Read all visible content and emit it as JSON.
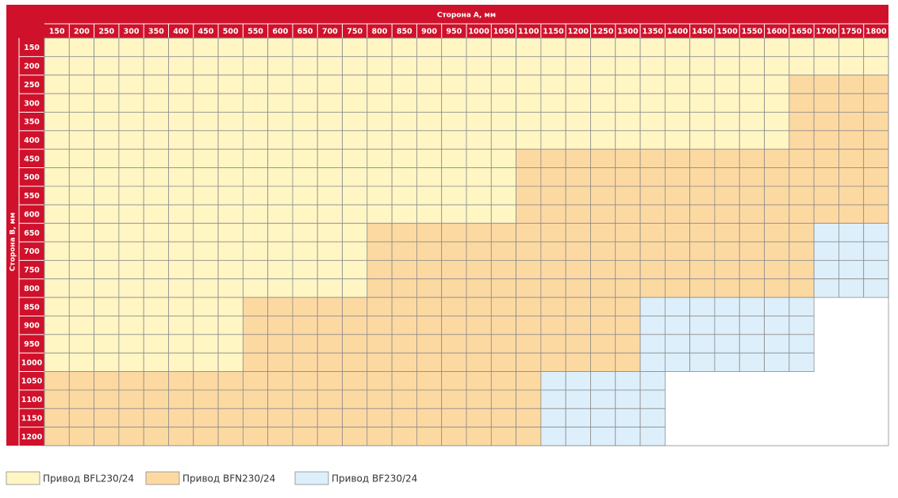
{
  "table": {
    "title_columns": "Сторона А, мм",
    "title_rows": "Сторона B, мм",
    "columns": [
      150,
      200,
      250,
      300,
      350,
      400,
      450,
      500,
      550,
      600,
      650,
      700,
      750,
      800,
      850,
      900,
      950,
      1000,
      1050,
      1100,
      1150,
      1200,
      1250,
      1300,
      1350,
      1400,
      1450,
      1500,
      1550,
      1600,
      1650,
      1700,
      1750,
      1800
    ],
    "rows": [
      150,
      200,
      250,
      300,
      350,
      400,
      450,
      500,
      550,
      600,
      650,
      700,
      750,
      800,
      850,
      900,
      950,
      1000,
      1050,
      1100,
      1150,
      1200
    ],
    "cells": [
      "0000000000000000000000000000000000",
      "0000000000000000000000000000000000",
      "0000000000000000000000000000001111",
      "0000000000000000000000000000001111",
      "0000000000000000000000000000001111",
      "0000000000000000000000000000001111",
      "0000000000000000000111111111111111",
      "0000000000000000000111111111111111",
      "0000000000000000000111111111111111",
      "0000000000000000000111111111111111",
      "0000000000000111111111111111111222",
      "0000000000000111111111111111111222",
      "0000000000000111111111111111111222",
      "0000000000000111111111111111111222",
      "0000000011111111111111112222222---",
      "0000000011111111111111112222222---",
      "0000000011111111111111112222222---",
      "0000000011111111111111112222222---",
      "1111111111111111111122222---------",
      "1111111111111111111122222---------",
      "1111111111111111111122222---------",
      "1111111111111111111122222---------"
    ]
  },
  "legend": [
    {
      "label": "Привод BFL230/24",
      "color": "#fff6c4"
    },
    {
      "label": "Привод BFN230/24",
      "color": "#fdd9a2"
    },
    {
      "label": "Привод BF230/24",
      "color": "#ddeffb"
    }
  ]
}
